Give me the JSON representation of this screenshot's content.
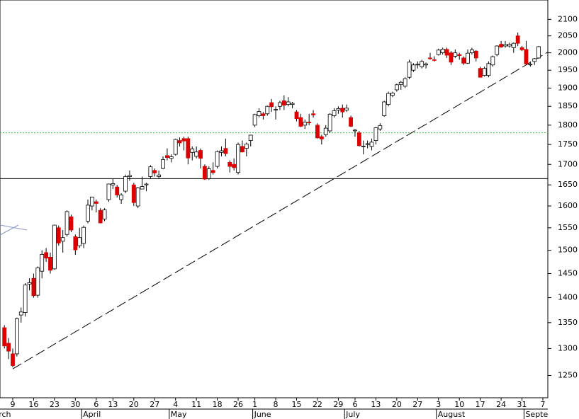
{
  "chart_data": {
    "type": "candlestick",
    "log_scale": true,
    "ylim": [
      1210,
      2160
    ],
    "yticks": [
      1250,
      1300,
      1350,
      1400,
      1450,
      1500,
      1550,
      1600,
      1650,
      1700,
      1750,
      1800,
      1850,
      1900,
      1950,
      2000,
      2050,
      2100
    ],
    "up_color": "#ffffff",
    "down_color": "#dd0000",
    "categories": [
      null,
      null,
      "9",
      null,
      null,
      null,
      null,
      "16",
      null,
      null,
      null,
      null,
      "23",
      null,
      null,
      null,
      null,
      "30",
      null,
      null,
      null,
      null,
      "6",
      null,
      null,
      null,
      "13",
      null,
      null,
      null,
      null,
      "20",
      null,
      null,
      null,
      null,
      "27",
      null,
      null,
      null,
      null,
      "4",
      null,
      null,
      null,
      null,
      "11",
      null,
      null,
      null,
      null,
      "18",
      null,
      null,
      null,
      null,
      "26",
      null,
      null,
      null,
      "1",
      null,
      null,
      null,
      null,
      "8",
      null,
      null,
      null,
      null,
      "15",
      null,
      null,
      null,
      null,
      "22",
      null,
      null,
      null,
      null,
      "29",
      null,
      null,
      null,
      "6",
      null,
      null,
      null,
      null,
      "13",
      null,
      null,
      null,
      null,
      "20",
      null,
      null,
      null,
      null,
      "27",
      null,
      null,
      null,
      null,
      "3",
      null,
      null,
      null,
      null,
      "10",
      null,
      null,
      null,
      null,
      "17",
      null,
      null,
      null,
      null,
      "24",
      null,
      null,
      null,
      null,
      "31",
      null,
      null,
      null,
      null,
      "7"
    ],
    "month_labels": [
      "March",
      null,
      null,
      null,
      null,
      null,
      null,
      null,
      null,
      null,
      null,
      null,
      null,
      null,
      null,
      null,
      null,
      null,
      null,
      "April",
      null,
      null,
      null,
      null,
      null,
      null,
      null,
      null,
      null,
      null,
      null,
      null,
      null,
      null,
      null,
      null,
      null,
      null,
      null,
      null,
      "May",
      null,
      null,
      null,
      null,
      null,
      null,
      null,
      null,
      null,
      null,
      null,
      null,
      null,
      null,
      null,
      null,
      null,
      null,
      null,
      "June",
      null,
      null,
      null,
      null,
      null,
      null,
      null,
      null,
      null,
      null,
      null,
      null,
      null,
      null,
      null,
      null,
      null,
      null,
      null,
      null,
      null,
      "July",
      null,
      null,
      null,
      null,
      null,
      null,
      null,
      null,
      null,
      null,
      null,
      null,
      null,
      null,
      null,
      null,
      null,
      null,
      null,
      null,
      null,
      "August",
      null,
      null,
      null,
      null,
      null,
      null,
      null,
      null,
      null,
      null,
      null,
      null,
      null,
      null,
      null,
      null,
      null,
      null,
      null,
      null,
      "September",
      null,
      null,
      null,
      null
    ],
    "open": [
      1340,
      1310,
      1290,
      1290,
      1365,
      1370,
      1428,
      1440,
      1405,
      1455,
      1495,
      1485,
      1460,
      1550,
      1520,
      1535,
      1575,
      1530,
      1510,
      1515,
      1565,
      1600,
      1610,
      1590,
      1570,
      1615,
      1650,
      1645,
      1615,
      1635,
      1670,
      1650,
      1600,
      1640,
      1650,
      1670,
      1685,
      1670,
      1690,
      1722,
      1715,
      1725,
      1760,
      1765,
      1765,
      1730,
      1720,
      1735,
      1695,
      1665,
      1685,
      1695,
      1730,
      1740,
      1705,
      1700,
      1680,
      1745,
      1740,
      1760,
      1800,
      1825,
      1830,
      1830,
      1860,
      1840,
      1850,
      1865,
      1855,
      1855,
      1835,
      1820,
      1800,
      1808,
      1830,
      1800,
      1770,
      1775,
      1785,
      1825,
      1840,
      1845,
      1840,
      1820,
      1785,
      1780,
      1745,
      1750,
      1745,
      1760,
      1790,
      1825,
      1855,
      1880,
      1895,
      1910,
      1905,
      1930,
      1950,
      1965,
      1960,
      1965,
      1985,
      1980,
      1995,
      2000,
      2010,
      2000,
      1990,
      1995,
      1985,
      1970,
      2000,
      2005,
      1955,
      1935,
      1935,
      1965,
      1995,
      2025,
      2020,
      2020,
      2015,
      2050,
      2015,
      2010,
      1965,
      1975,
      1985,
      null
    ],
    "high": [
      1345,
      1320,
      1300,
      1360,
      1380,
      1430,
      1440,
      1450,
      1465,
      1500,
      1505,
      1495,
      1557,
      1555,
      1545,
      1590,
      1580,
      1535,
      1550,
      1555,
      1615,
      1622,
      1615,
      1595,
      1595,
      1653,
      1665,
      1650,
      1630,
      1675,
      1685,
      1655,
      1645,
      1670,
      1655,
      1698,
      1690,
      1685,
      1720,
      1740,
      1725,
      1765,
      1768,
      1770,
      1770,
      1745,
      1745,
      1740,
      1700,
      1695,
      1705,
      1735,
      1745,
      1765,
      1710,
      1715,
      1755,
      1760,
      1755,
      1775,
      1830,
      1845,
      1835,
      1852,
      1870,
      1850,
      1865,
      1880,
      1875,
      1862,
      1840,
      1830,
      1815,
      1830,
      1840,
      1805,
      1775,
      1800,
      1832,
      1845,
      1850,
      1855,
      1855,
      1825,
      1790,
      1785,
      1760,
      1760,
      1765,
      1795,
      1805,
      1865,
      1890,
      1890,
      1912,
      1920,
      1930,
      1980,
      1970,
      1975,
      1980,
      1972,
      2000,
      1990,
      2012,
      2015,
      2015,
      2005,
      2010,
      2000,
      1990,
      2010,
      2015,
      2008,
      1960,
      1960,
      1975,
      1992,
      2022,
      2035,
      2035,
      2030,
      2030,
      2060,
      2020,
      2035,
      1975,
      1985,
      2020,
      null
    ],
    "low": [
      1300,
      1280,
      1265,
      1285,
      1350,
      1362,
      1415,
      1400,
      1400,
      1440,
      1475,
      1450,
      1458,
      1510,
      1495,
      1530,
      1540,
      1490,
      1505,
      1505,
      1560,
      1590,
      1585,
      1560,
      1565,
      1610,
      1640,
      1620,
      1605,
      1630,
      1660,
      1600,
      1595,
      1640,
      1635,
      1665,
      1670,
      1665,
      1688,
      1710,
      1705,
      1722,
      1745,
      1735,
      1700,
      1710,
      1715,
      1690,
      1662,
      1662,
      1675,
      1690,
      1720,
      1720,
      1680,
      1685,
      1675,
      1730,
      1720,
      1745,
      1795,
      1820,
      1815,
      1825,
      1835,
      1815,
      1840,
      1840,
      1850,
      1845,
      1810,
      1795,
      1790,
      1800,
      1820,
      1765,
      1750,
      1770,
      1780,
      1820,
      1830,
      1820,
      1835,
      1795,
      1770,
      1745,
      1725,
      1740,
      1735,
      1750,
      1785,
      1822,
      1850,
      1875,
      1890,
      1895,
      1900,
      1925,
      1945,
      1955,
      1955,
      1955,
      1980,
      1975,
      1992,
      1995,
      1985,
      1965,
      1985,
      1980,
      1965,
      1968,
      1995,
      1975,
      1930,
      1932,
      1930,
      1960,
      1990,
      2015,
      2015,
      2015,
      2000,
      2020,
      2005,
      1965,
      1960,
      1965,
      1983,
      null
    ],
    "close": [
      1305,
      1295,
      1268,
      1358,
      1371,
      1426,
      1431,
      1404,
      1462,
      1491,
      1483,
      1457,
      1556,
      1516,
      1528,
      1587,
      1545,
      1501,
      1528,
      1551,
      1602,
      1621,
      1606,
      1561,
      1591,
      1652,
      1653,
      1626,
      1626,
      1670,
      1673,
      1608,
      1643,
      1646,
      1652,
      1694,
      1679,
      1674,
      1712,
      1717,
      1719,
      1763,
      1754,
      1759,
      1716,
      1739,
      1731,
      1715,
      1664,
      1689,
      1680,
      1732,
      1734,
      1727,
      1695,
      1692,
      1750,
      1731,
      1751,
      1774,
      1828,
      1836,
      1825,
      1850,
      1849,
      1842,
      1860,
      1853,
      1862,
      1858,
      1817,
      1797,
      1808,
      1807,
      1827,
      1767,
      1764,
      1792,
      1829,
      1838,
      1844,
      1835,
      1845,
      1797,
      1787,
      1747,
      1746,
      1752,
      1756,
      1793,
      1799,
      1862,
      1885,
      1886,
      1909,
      1916,
      1926,
      1973,
      1965,
      1967,
      1975,
      1968,
      1984,
      1979,
      2008,
      2011,
      1993,
      1973,
      2000,
      1992,
      1970,
      1999,
      2009,
      1985,
      1930,
      1955,
      1969,
      1989,
      2020,
      2017,
      2024,
      2025,
      2028,
      2028,
      2009,
      1968,
      1967,
      1983,
      2018,
      null
    ],
    "hlines": [
      {
        "value": 1665,
        "color": "#000000",
        "dash": false
      },
      {
        "value": 1780,
        "color": "#33bb33",
        "dash": true
      }
    ],
    "trendline": {
      "x": [
        2,
        131
      ],
      "values": [
        1262,
        2008
      ],
      "color": "#000000"
    }
  }
}
